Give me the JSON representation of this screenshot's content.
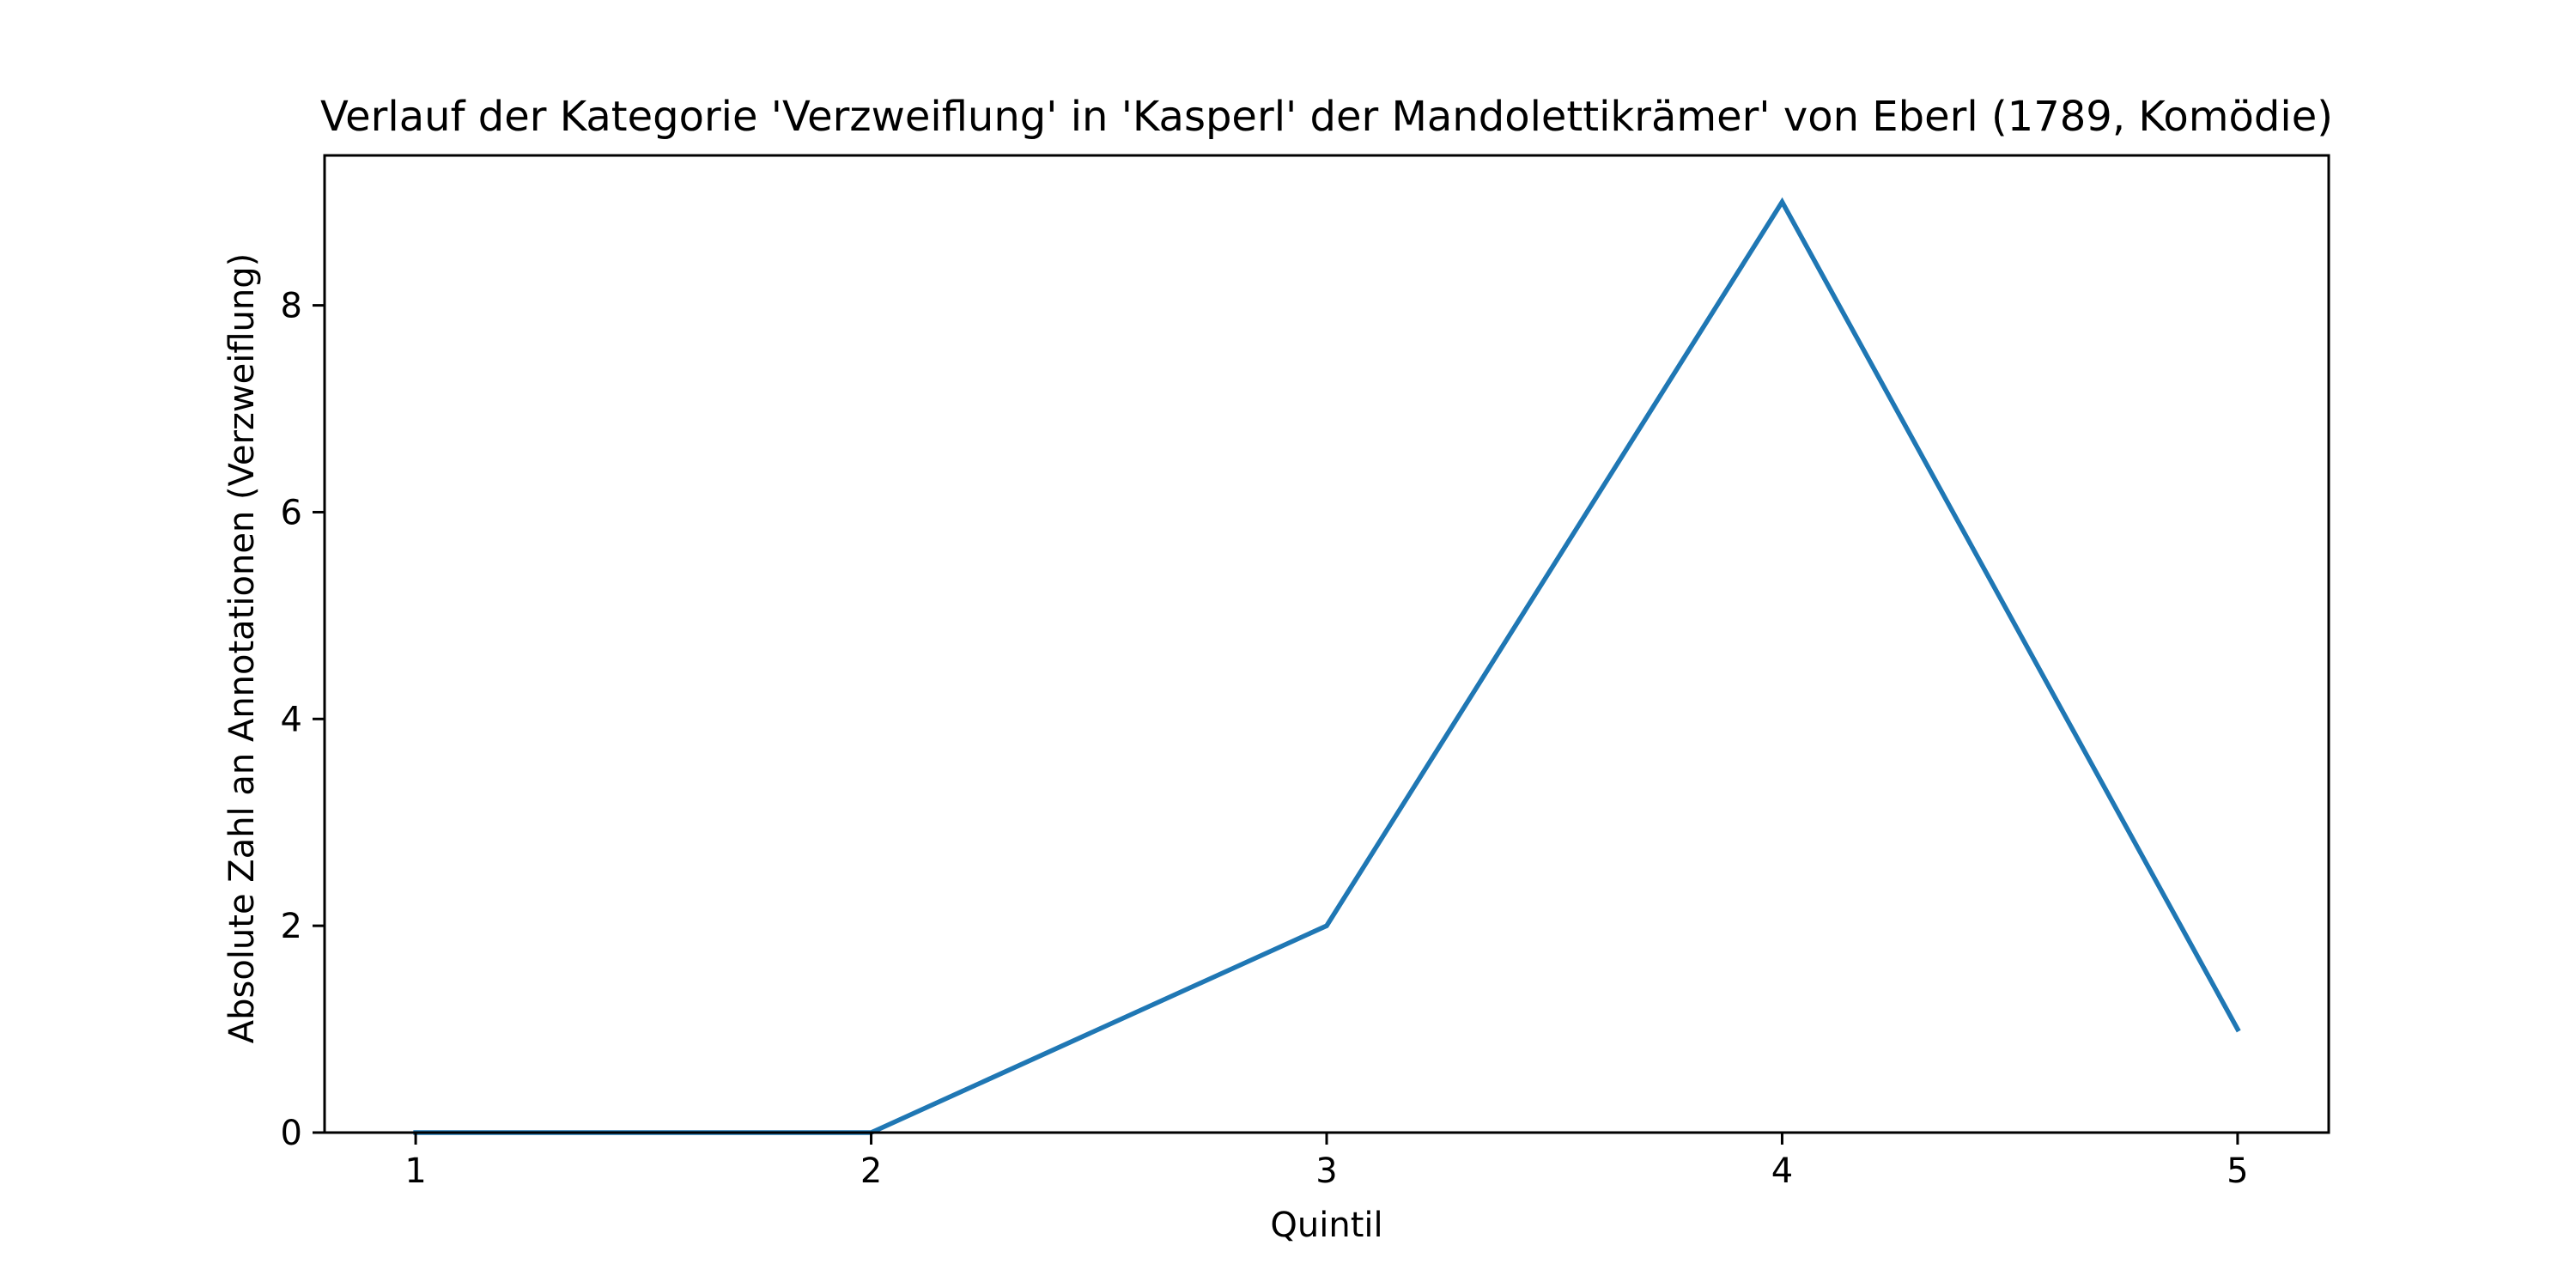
{
  "chart_data": {
    "type": "line",
    "title": "Verlauf der Kategorie 'Verzweiflung' in 'Kasperl' der Mandolettikrämer' von Eberl (1789, Komödie)",
    "xlabel": "Quintil",
    "ylabel": "Absolute Zahl an Annotationen (Verzweiflung)",
    "x": [
      1,
      2,
      3,
      4,
      5
    ],
    "xticks": [
      "1",
      "2",
      "3",
      "4",
      "5"
    ],
    "yticks": [
      "0",
      "2",
      "4",
      "6",
      "8"
    ],
    "xlim": [
      0.8,
      5.2
    ],
    "ylim": [
      0,
      9.45
    ],
    "series": [
      {
        "values": [
          0,
          0,
          2,
          9,
          1
        ],
        "color": "#1f77b4"
      }
    ],
    "grid": false,
    "legend": "none"
  }
}
